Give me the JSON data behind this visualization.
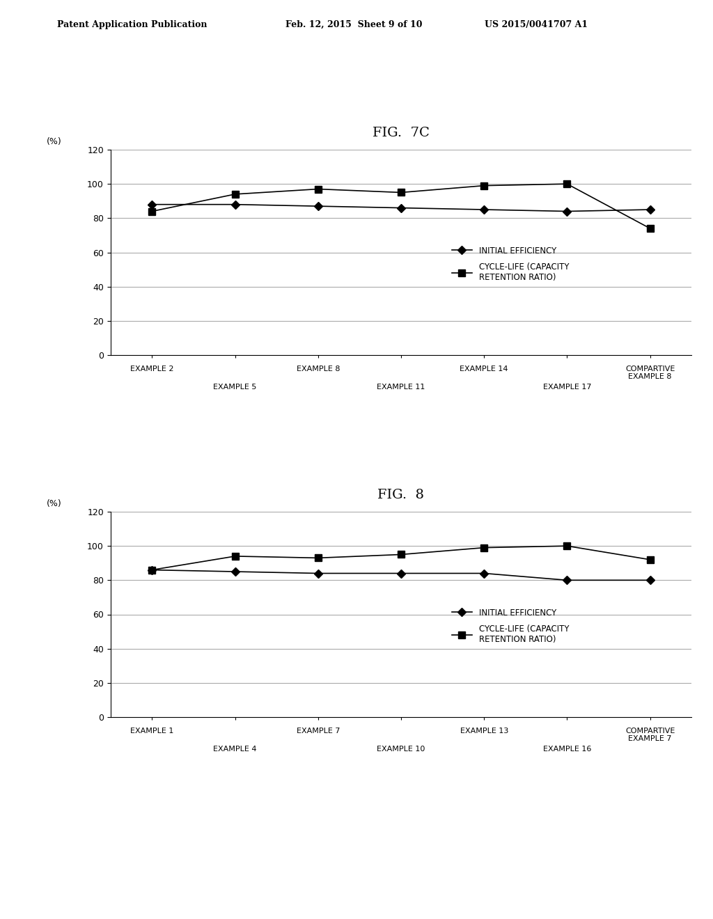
{
  "header_left": "Patent Application Publication",
  "header_mid": "Feb. 12, 2015  Sheet 9 of 10",
  "header_right": "US 2015/0041707 A1",
  "fig7c": {
    "title": "FIG.  7C",
    "x_tick_labels": [
      "EXAMPLE 2",
      "EXAMPLE 5",
      "EXAMPLE 8",
      "EXAMPLE 11",
      "EXAMPLE 14",
      "EXAMPLE 17",
      "COMPARTIVE\nEXAMPLE 8"
    ],
    "initial_efficiency": [
      88,
      88,
      87,
      86,
      85,
      84,
      85
    ],
    "cycle_life": [
      84,
      94,
      97,
      95,
      99,
      100,
      74
    ],
    "ylim": [
      0,
      120
    ],
    "yticks": [
      0,
      20,
      40,
      60,
      80,
      100,
      120
    ],
    "ylabel": "(%)",
    "legend1": "INITIAL EFFICIENCY",
    "legend2": "CYCLE-LIFE (CAPACITY\nRETENTION RATIO)"
  },
  "fig8": {
    "title": "FIG.  8",
    "x_tick_labels": [
      "EXAMPLE 1",
      "EXAMPLE 4",
      "EXAMPLE 7",
      "EXAMPLE 10",
      "EXAMPLE 13",
      "EXAMPLE 16",
      "COMPARTIVE\nEXAMPLE 7"
    ],
    "initial_efficiency": [
      86,
      85,
      84,
      84,
      84,
      80,
      80
    ],
    "cycle_life": [
      86,
      94,
      93,
      95,
      99,
      100,
      92
    ],
    "ylim": [
      0,
      120
    ],
    "yticks": [
      0,
      20,
      40,
      60,
      80,
      100,
      120
    ],
    "ylabel": "(%)",
    "legend1": "INITIAL EFFICIENCY",
    "legend2": "CYCLE-LIFE (CAPACITY\nRETENTION RATIO)"
  },
  "line_color": "#000000",
  "bg_color": "#ffffff",
  "grid_color": "#aaaaaa"
}
